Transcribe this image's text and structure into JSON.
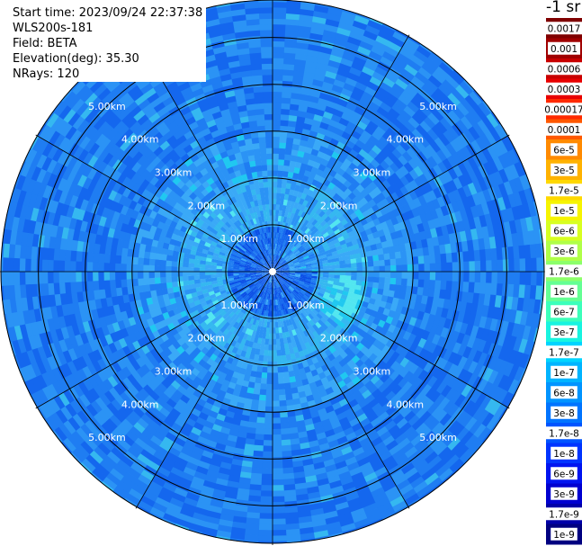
{
  "header": {
    "start_time": "Start time: 2023/09/24 22:37:38",
    "instrument": "WLS200s-181",
    "field": "Field: BETA",
    "elevation": "Elevation(deg): 35.30",
    "nrays": "NRays: 120"
  },
  "colorbar": {
    "title": "-1 sr",
    "labels": [
      "0.0017",
      "0.001",
      "0.0006",
      "0.0003",
      "0.00017",
      "0.0001",
      "6e-5",
      "3e-5",
      "1.7e-5",
      "1e-5",
      "6e-6",
      "3e-6",
      "1.7e-6",
      "1e-6",
      "6e-7",
      "3e-7",
      "1.7e-7",
      "1e-7",
      "6e-8",
      "3e-8",
      "1.7e-8",
      "1e-8",
      "6e-9",
      "3e-9",
      "1.7e-9",
      "1e-9"
    ],
    "colors": [
      "#7f0000",
      "#a00000",
      "#c80000",
      "#e80000",
      "#ff2a00",
      "#ff5800",
      "#ff8a00",
      "#ffb200",
      "#ffd800",
      "#f6f400",
      "#d8ff20",
      "#b0ff48",
      "#8cff6a",
      "#64ff94",
      "#3cffba",
      "#18f4e0",
      "#00d4ff",
      "#00b4ff",
      "#0094ff",
      "#0074ff",
      "#0054ff",
      "#0034ff",
      "#0014f0",
      "#0000d0",
      "#0000a8",
      "#000080"
    ]
  },
  "chart_data": {
    "type": "heatmap",
    "projection": "polar (PPI scan)",
    "range_rings_km": [
      1,
      2,
      3,
      4,
      5
    ],
    "ring_labels": [
      "1.00km",
      "2.00km",
      "3.00km",
      "4.00km",
      "5.00km"
    ],
    "radial_spokes_deg": [
      0,
      30,
      60,
      90,
      120,
      150,
      180,
      210,
      240,
      270,
      300,
      330
    ],
    "max_range_km": 5.8,
    "rays": 120,
    "field": "BETA",
    "value_by_range": [
      {
        "range_km": [
          0,
          1
        ],
        "beta": "1e-8 to 3e-8"
      },
      {
        "range_km": [
          1,
          2
        ],
        "beta": "1e-7 to 1.7e-7"
      },
      {
        "range_km": [
          2,
          3
        ],
        "beta": "3e-8 to 6e-8"
      },
      {
        "range_km": [
          3,
          5.8
        ],
        "beta": "1e-8 to 6e-8"
      }
    ]
  }
}
